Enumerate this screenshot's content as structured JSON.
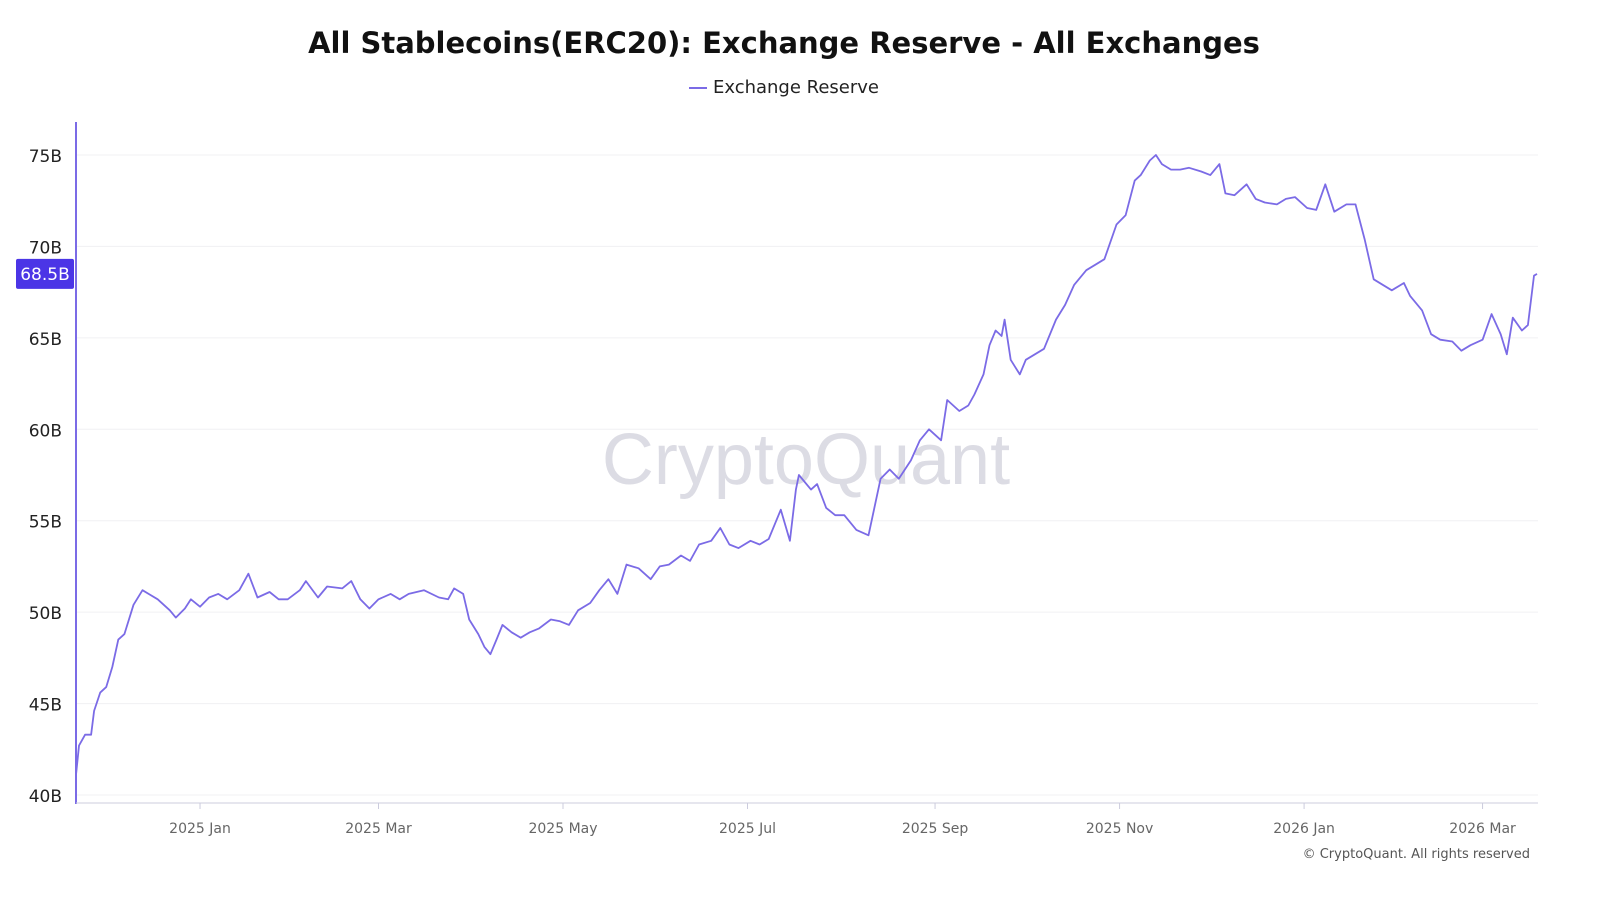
{
  "chart_data": {
    "type": "line",
    "title": "All Stablecoins(ERC20): Exchange Reserve - All Exchanges",
    "legend": "top",
    "grid": true,
    "xlabel": "",
    "ylabel": "",
    "ylim": [
      40,
      75
    ],
    "xlim": [
      "2024-11-21",
      "2026-03-19"
    ],
    "y_ticks": [
      "40B",
      "45B",
      "50B",
      "55B",
      "60B",
      "65B",
      "70B",
      "75B"
    ],
    "x_ticks": [
      {
        "date": "2025-01-01",
        "label": "2025 Jan"
      },
      {
        "date": "2025-03-01",
        "label": "2025 Mar"
      },
      {
        "date": "2025-05-01",
        "label": "2025 May"
      },
      {
        "date": "2025-07-01",
        "label": "2025 Jul"
      },
      {
        "date": "2025-09-01",
        "label": "2025 Sep"
      },
      {
        "date": "2025-11-01",
        "label": "2025 Nov"
      },
      {
        "date": "2026-01-01",
        "label": "2026 Jan"
      },
      {
        "date": "2026-03-01",
        "label": "2026 Mar"
      }
    ],
    "current_value_label": "68.5B",
    "current_value": 68.5,
    "series": [
      {
        "name": "Exchange Reserve",
        "color": "#7b6be6",
        "points": [
          [
            "2024-11-21",
            41.1
          ],
          [
            "2024-11-22",
            42.7
          ],
          [
            "2024-11-24",
            43.3
          ],
          [
            "2024-11-26",
            43.3
          ],
          [
            "2024-11-27",
            44.6
          ],
          [
            "2024-11-29",
            45.6
          ],
          [
            "2024-12-01",
            45.9
          ],
          [
            "2024-12-03",
            47.0
          ],
          [
            "2024-12-05",
            48.5
          ],
          [
            "2024-12-07",
            48.8
          ],
          [
            "2024-12-10",
            50.4
          ],
          [
            "2024-12-13",
            51.2
          ],
          [
            "2024-12-15",
            51.0
          ],
          [
            "2024-12-18",
            50.7
          ],
          [
            "2024-12-22",
            50.1
          ],
          [
            "2024-12-24",
            49.7
          ],
          [
            "2024-12-27",
            50.2
          ],
          [
            "2024-12-29",
            50.7
          ],
          [
            "2025-01-01",
            50.3
          ],
          [
            "2025-01-04",
            50.8
          ],
          [
            "2025-01-07",
            51.0
          ],
          [
            "2025-01-10",
            50.7
          ],
          [
            "2025-01-14",
            51.2
          ],
          [
            "2025-01-17",
            52.1
          ],
          [
            "2025-01-20",
            50.8
          ],
          [
            "2025-01-24",
            51.1
          ],
          [
            "2025-01-27",
            50.7
          ],
          [
            "2025-01-30",
            50.7
          ],
          [
            "2025-02-03",
            51.2
          ],
          [
            "2025-02-05",
            51.7
          ],
          [
            "2025-02-09",
            50.8
          ],
          [
            "2025-02-12",
            51.4
          ],
          [
            "2025-02-17",
            51.3
          ],
          [
            "2025-02-20",
            51.7
          ],
          [
            "2025-02-23",
            50.7
          ],
          [
            "2025-02-26",
            50.2
          ],
          [
            "2025-03-01",
            50.7
          ],
          [
            "2025-03-05",
            51.0
          ],
          [
            "2025-03-08",
            50.7
          ],
          [
            "2025-03-11",
            51.0
          ],
          [
            "2025-03-16",
            51.2
          ],
          [
            "2025-03-21",
            50.8
          ],
          [
            "2025-03-24",
            50.7
          ],
          [
            "2025-03-26",
            51.3
          ],
          [
            "2025-03-29",
            51.0
          ],
          [
            "2025-03-31",
            49.6
          ],
          [
            "2025-04-03",
            48.8
          ],
          [
            "2025-04-05",
            48.1
          ],
          [
            "2025-04-07",
            47.7
          ],
          [
            "2025-04-09",
            48.5
          ],
          [
            "2025-04-11",
            49.3
          ],
          [
            "2025-04-14",
            48.9
          ],
          [
            "2025-04-17",
            48.6
          ],
          [
            "2025-04-20",
            48.9
          ],
          [
            "2025-04-23",
            49.1
          ],
          [
            "2025-04-27",
            49.6
          ],
          [
            "2025-04-30",
            49.5
          ],
          [
            "2025-05-03",
            49.3
          ],
          [
            "2025-05-06",
            50.1
          ],
          [
            "2025-05-10",
            50.5
          ],
          [
            "2025-05-13",
            51.2
          ],
          [
            "2025-05-16",
            51.8
          ],
          [
            "2025-05-19",
            51.0
          ],
          [
            "2025-05-22",
            52.6
          ],
          [
            "2025-05-26",
            52.4
          ],
          [
            "2025-05-30",
            51.8
          ],
          [
            "2025-06-02",
            52.5
          ],
          [
            "2025-06-05",
            52.6
          ],
          [
            "2025-06-09",
            53.1
          ],
          [
            "2025-06-12",
            52.8
          ],
          [
            "2025-06-15",
            53.7
          ],
          [
            "2025-06-19",
            53.9
          ],
          [
            "2025-06-22",
            54.6
          ],
          [
            "2025-06-25",
            53.7
          ],
          [
            "2025-06-28",
            53.5
          ],
          [
            "2025-07-02",
            53.9
          ],
          [
            "2025-07-05",
            53.7
          ],
          [
            "2025-07-08",
            54.0
          ],
          [
            "2025-07-12",
            55.6
          ],
          [
            "2025-07-15",
            53.9
          ],
          [
            "2025-07-17",
            56.7
          ],
          [
            "2025-07-18",
            57.5
          ],
          [
            "2025-07-22",
            56.7
          ],
          [
            "2025-07-24",
            57.0
          ],
          [
            "2025-07-27",
            55.7
          ],
          [
            "2025-07-30",
            55.3
          ],
          [
            "2025-08-02",
            55.3
          ],
          [
            "2025-08-06",
            54.5
          ],
          [
            "2025-08-10",
            54.2
          ],
          [
            "2025-08-14",
            57.3
          ],
          [
            "2025-08-17",
            57.8
          ],
          [
            "2025-08-20",
            57.3
          ],
          [
            "2025-08-24",
            58.3
          ],
          [
            "2025-08-27",
            59.4
          ],
          [
            "2025-08-30",
            60.0
          ],
          [
            "2025-09-03",
            59.4
          ],
          [
            "2025-09-05",
            61.6
          ],
          [
            "2025-09-09",
            61.0
          ],
          [
            "2025-09-12",
            61.3
          ],
          [
            "2025-09-14",
            61.9
          ],
          [
            "2025-09-17",
            63.0
          ],
          [
            "2025-09-19",
            64.6
          ],
          [
            "2025-09-21",
            65.4
          ],
          [
            "2025-09-23",
            65.1
          ],
          [
            "2025-09-24",
            66.0
          ],
          [
            "2025-09-26",
            63.8
          ],
          [
            "2025-09-29",
            63.0
          ],
          [
            "2025-10-01",
            63.8
          ],
          [
            "2025-10-04",
            64.1
          ],
          [
            "2025-10-07",
            64.4
          ],
          [
            "2025-10-11",
            66.0
          ],
          [
            "2025-10-14",
            66.8
          ],
          [
            "2025-10-17",
            67.9
          ],
          [
            "2025-10-21",
            68.7
          ],
          [
            "2025-10-24",
            69.0
          ],
          [
            "2025-10-27",
            69.3
          ],
          [
            "2025-10-31",
            71.2
          ],
          [
            "2025-11-03",
            71.7
          ],
          [
            "2025-11-06",
            73.6
          ],
          [
            "2025-11-08",
            73.9
          ],
          [
            "2025-11-11",
            74.7
          ],
          [
            "2025-11-13",
            75.0
          ],
          [
            "2025-11-15",
            74.5
          ],
          [
            "2025-11-18",
            74.2
          ],
          [
            "2025-11-21",
            74.2
          ],
          [
            "2025-11-24",
            74.3
          ],
          [
            "2025-11-28",
            74.1
          ],
          [
            "2025-12-01",
            73.9
          ],
          [
            "2025-12-04",
            74.5
          ],
          [
            "2025-12-06",
            72.9
          ],
          [
            "2025-12-09",
            72.8
          ],
          [
            "2025-12-13",
            73.4
          ],
          [
            "2025-12-16",
            72.6
          ],
          [
            "2025-12-19",
            72.4
          ],
          [
            "2025-12-23",
            72.3
          ],
          [
            "2025-12-26",
            72.6
          ],
          [
            "2025-12-29",
            72.7
          ],
          [
            "2026-01-02",
            72.1
          ],
          [
            "2026-01-05",
            72.0
          ],
          [
            "2026-01-08",
            73.4
          ],
          [
            "2026-01-11",
            71.9
          ],
          [
            "2026-01-15",
            72.3
          ],
          [
            "2026-01-18",
            72.3
          ],
          [
            "2026-01-21",
            70.4
          ],
          [
            "2026-01-24",
            68.2
          ],
          [
            "2026-01-27",
            67.9
          ],
          [
            "2026-01-30",
            67.6
          ],
          [
            "2026-02-03",
            68.0
          ],
          [
            "2026-02-05",
            67.3
          ],
          [
            "2026-02-09",
            66.5
          ],
          [
            "2026-02-12",
            65.2
          ],
          [
            "2026-02-15",
            64.9
          ],
          [
            "2026-02-19",
            64.8
          ],
          [
            "2026-02-22",
            64.3
          ],
          [
            "2026-02-25",
            64.6
          ],
          [
            "2026-03-01",
            64.9
          ],
          [
            "2026-03-04",
            66.3
          ],
          [
            "2026-03-07",
            65.2
          ],
          [
            "2026-03-09",
            64.1
          ],
          [
            "2026-03-11",
            66.1
          ],
          [
            "2026-03-14",
            65.4
          ],
          [
            "2026-03-16",
            65.7
          ],
          [
            "2026-03-18",
            68.4
          ],
          [
            "2026-03-19",
            68.5
          ]
        ]
      }
    ]
  },
  "watermark": "CryptoQuant",
  "footer": "© CryptoQuant. All rights reserved"
}
